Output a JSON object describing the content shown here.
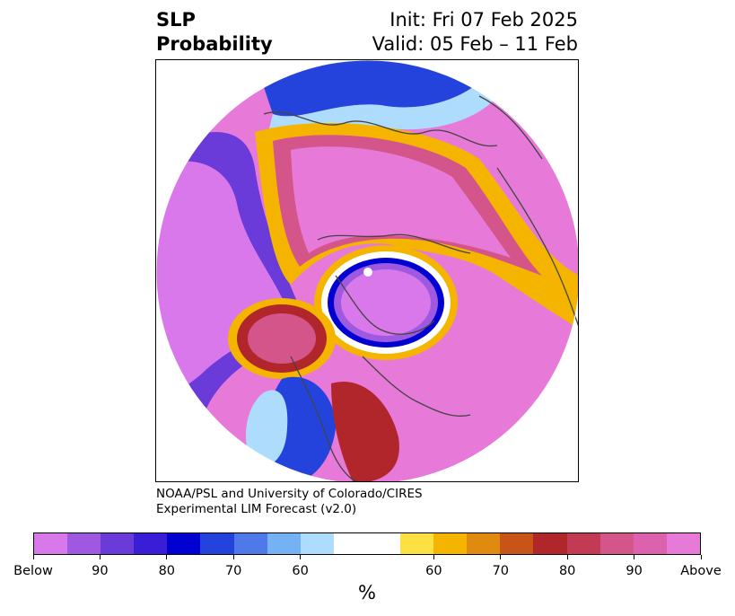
{
  "header": {
    "left_line1": "SLP",
    "left_line2": "Probability",
    "right_line1": "Init: Fri 07 Feb 2025",
    "right_line2": "Valid: 05 Feb – 11 Feb"
  },
  "credit": {
    "line1": "NOAA/PSL and University of Colorado/CIRES",
    "line2": "Experimental LIM Forecast (v2.0)"
  },
  "colorbar": {
    "unit": "%",
    "colors": [
      "#d878ea",
      "#9e59e0",
      "#6a3bd8",
      "#3a1dd6",
      "#0000d0",
      "#2443dc",
      "#4f78e8",
      "#74b2f4",
      "#aedcfc",
      "#ffffff",
      "#ffffff",
      "#fde144",
      "#f4b400",
      "#e08a10",
      "#c95418",
      "#b0262a",
      "#c33a55",
      "#d4558a",
      "#dc62ae",
      "#e77ad9"
    ],
    "ticks": [
      "Below",
      "90",
      "80",
      "70",
      "60",
      "60",
      "70",
      "80",
      "90",
      "Above"
    ]
  },
  "map": {
    "projection": "polar-stereographic",
    "colors": {
      "above_strong": "#e77ad9",
      "above_mid": "#d4558a",
      "above_red": "#b0262a",
      "above_orange": "#e08a10",
      "above_yellow": "#f4b400",
      "neutral": "#ffffff",
      "below_light": "#aedcfc",
      "below_mid": "#4f78e8",
      "below_dark": "#0000d0",
      "below_strong": "#d878ea",
      "coastline": "#444444"
    }
  }
}
